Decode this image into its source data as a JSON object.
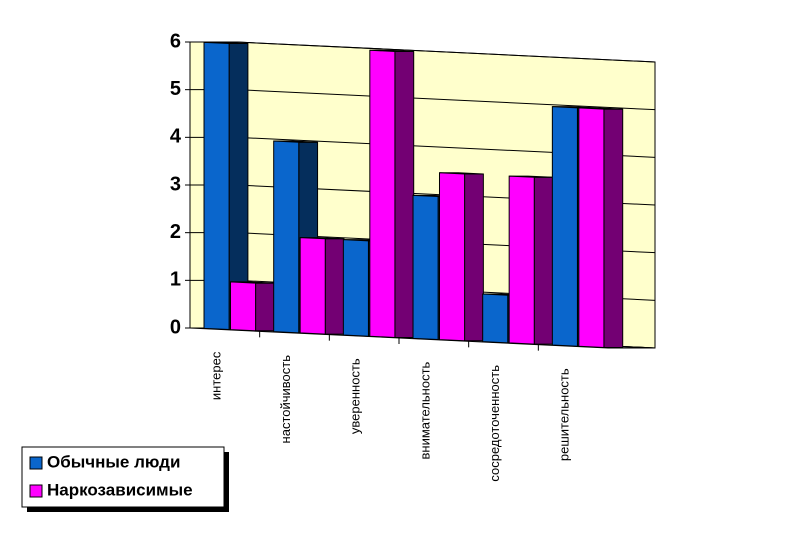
{
  "chart_data": {
    "type": "bar3d",
    "categories": [
      "интерес",
      "настойчивость",
      "уверенность",
      "внимательность",
      "сосредоточенность",
      "решительность"
    ],
    "series": [
      {
        "name": "Обычные люди",
        "color": "#0a66cc",
        "values": [
          6,
          4,
          2,
          3,
          1,
          5
        ]
      },
      {
        "name": "Наркозависимые",
        "color": "#ff00ff",
        "values": [
          1,
          2,
          6,
          3.5,
          3.5,
          5
        ]
      }
    ],
    "ylim": [
      0,
      6
    ],
    "yticks": [
      0,
      1,
      2,
      3,
      4,
      5,
      6
    ],
    "grid": true,
    "legend": "bottom-left"
  }
}
